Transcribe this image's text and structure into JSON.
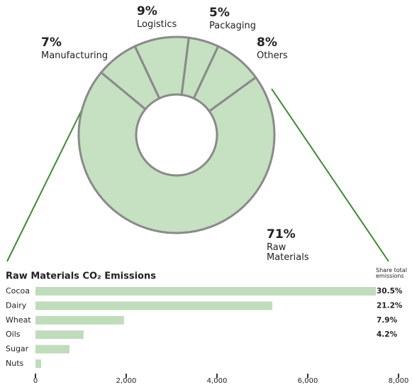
{
  "chart_data": [
    {
      "type": "donut",
      "categories": [
        "Raw Materials",
        "Manufacturing",
        "Logistics",
        "Packaging",
        "Others"
      ],
      "values": [
        71,
        7,
        9,
        5,
        8
      ],
      "value_labels": [
        "71%",
        "7%",
        "9%",
        "5%",
        "8%"
      ],
      "color": "#c6e0c2"
    },
    {
      "type": "hbar",
      "title": "Raw Materials CO₂ Emissions",
      "categories": [
        "Cocoa",
        "Dairy",
        "Wheat",
        "Oils",
        "Sugar",
        "Nuts"
      ],
      "values": [
        7500,
        5220,
        1950,
        1060,
        750,
        125
      ],
      "color": "#c0dcbc",
      "xlim": [
        0,
        8000
      ],
      "xticks": [
        0,
        {
          "value": 2000,
          "label": "2,000"
        },
        {
          "value": 4000,
          "label": "4,000"
        },
        {
          "value": 6000,
          "label": "6,000"
        },
        {
          "value": 8000,
          "label": "8,000"
        }
      ],
      "share": {
        "label": "Share total emissions",
        "values": [
          30.5,
          21.2,
          7.9,
          4.2,
          null,
          null
        ],
        "value_labels": [
          "30.5%",
          "21.2%",
          "7.9%",
          "4.2%",
          null,
          null
        ]
      }
    }
  ]
}
